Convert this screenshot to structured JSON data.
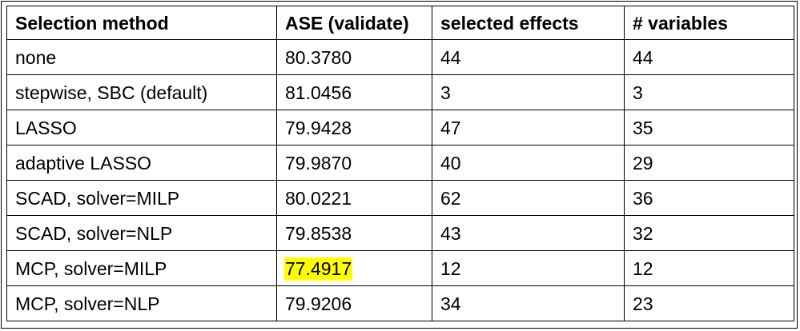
{
  "table": {
    "headers": [
      "Selection method",
      "ASE (validate)",
      "selected effects",
      "# variables"
    ],
    "rows": [
      {
        "method": "none",
        "ase": "80.3780",
        "effects": "44",
        "variables": "44",
        "highlight": false
      },
      {
        "method": "stepwise, SBC (default)",
        "ase": "81.0456",
        "effects": "3",
        "variables": "3",
        "highlight": false
      },
      {
        "method": "LASSO",
        "ase": "79.9428",
        "effects": "47",
        "variables": "35",
        "highlight": false
      },
      {
        "method": "adaptive LASSO",
        "ase": "79.9870",
        "effects": "40",
        "variables": "29",
        "highlight": false
      },
      {
        "method": "SCAD, solver=MILP",
        "ase": "80.0221",
        "effects": "62",
        "variables": "36",
        "highlight": false
      },
      {
        "method": "SCAD, solver=NLP",
        "ase": "79.8538",
        "effects": "43",
        "variables": "32",
        "highlight": false
      },
      {
        "method": "MCP, solver=MILP",
        "ase": "77.4917",
        "effects": "12",
        "variables": "12",
        "highlight": true
      },
      {
        "method": "MCP, solver=NLP",
        "ase": "79.9206",
        "effects": "34",
        "variables": "23",
        "highlight": false
      }
    ],
    "highlight_color": "#ffff00"
  }
}
